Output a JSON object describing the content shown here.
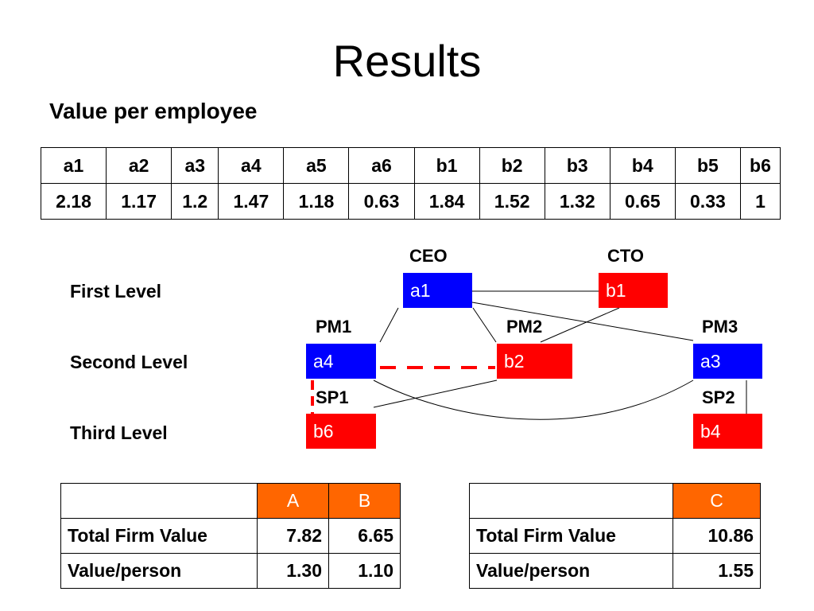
{
  "title": "Results",
  "subtitle": "Value per employee",
  "employees": {
    "names": [
      "a1",
      "a2",
      "a3",
      "a4",
      "a5",
      "a6",
      "b1",
      "b2",
      "b3",
      "b4",
      "b5",
      "b6"
    ],
    "values": [
      "2.18",
      "1.17",
      "1.2",
      "1.47",
      "1.18",
      "0.63",
      "1.84",
      "1.52",
      "1.32",
      "0.65",
      "0.33",
      "1"
    ]
  },
  "levels": {
    "first": "First Level",
    "second": "Second Level",
    "third": "Third Level"
  },
  "roles": {
    "ceo": "CEO",
    "cto": "CTO",
    "pm1": "PM1",
    "pm2": "PM2",
    "pm3": "PM3",
    "sp1": "SP1",
    "sp2": "SP2"
  },
  "nodes": {
    "a1": "a1",
    "b1": "b1",
    "a4": "a4",
    "b2": "b2",
    "a3": "a3",
    "b6": "b6",
    "b4": "b4"
  },
  "colors": {
    "blue": "#0000FF",
    "red": "#FF0000",
    "orange": "#FF6600"
  },
  "tableAB": {
    "headers": [
      "",
      "A",
      "B"
    ],
    "rows": [
      [
        "Total Firm Value",
        "7.82",
        "6.65"
      ],
      [
        "Value/person",
        "1.30",
        "1.10"
      ]
    ]
  },
  "tableC": {
    "headers": [
      "",
      "C"
    ],
    "rows": [
      [
        "Total Firm Value",
        "10.86"
      ],
      [
        "Value/person",
        "1.55"
      ]
    ]
  }
}
